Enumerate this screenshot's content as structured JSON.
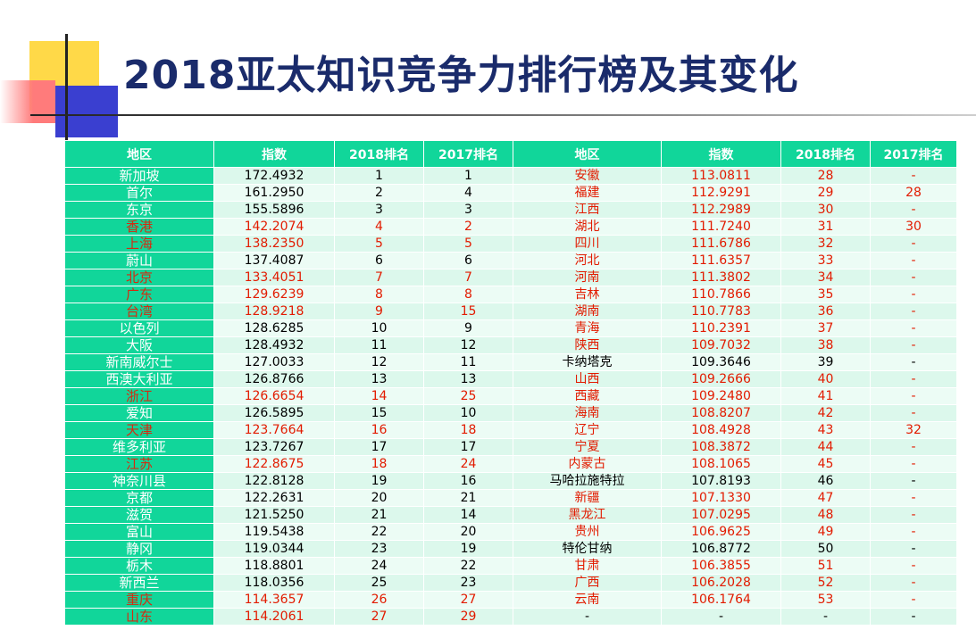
{
  "title": "2018亚太知识竞争力排行榜及其变化",
  "colors": {
    "title": "#1a2b6b",
    "header_bg": "#11d69a",
    "highlight_text": "#e21b00"
  },
  "table": {
    "headers": [
      "地区",
      "指数",
      "2018排名",
      "2017排名",
      "地区",
      "指数",
      "2018排名",
      "2017排名"
    ],
    "rows": [
      {
        "left": {
          "region": "新加坡",
          "index": "172.4932",
          "rank2018": "1",
          "rank2017": "1",
          "highlight": false
        },
        "right": {
          "region": "安徽",
          "index": "113.0811",
          "rank2018": "28",
          "rank2017": "-",
          "highlight": true
        }
      },
      {
        "left": {
          "region": "首尔",
          "index": "161.2950",
          "rank2018": "2",
          "rank2017": "4",
          "highlight": false
        },
        "right": {
          "region": "福建",
          "index": "112.9291",
          "rank2018": "29",
          "rank2017": "28",
          "highlight": true
        }
      },
      {
        "left": {
          "region": "东京",
          "index": "155.5896",
          "rank2018": "3",
          "rank2017": "3",
          "highlight": false
        },
        "right": {
          "region": "江西",
          "index": "112.2989",
          "rank2018": "30",
          "rank2017": "-",
          "highlight": true
        }
      },
      {
        "left": {
          "region": "香港",
          "index": "142.2074",
          "rank2018": "4",
          "rank2017": "2",
          "highlight": true
        },
        "right": {
          "region": "湖北",
          "index": "111.7240",
          "rank2018": "31",
          "rank2017": "30",
          "highlight": true
        }
      },
      {
        "left": {
          "region": "上海",
          "index": "138.2350",
          "rank2018": "5",
          "rank2017": "5",
          "highlight": true
        },
        "right": {
          "region": "四川",
          "index": "111.6786",
          "rank2018": "32",
          "rank2017": "-",
          "highlight": true
        }
      },
      {
        "left": {
          "region": "蔚山",
          "index": "137.4087",
          "rank2018": "6",
          "rank2017": "6",
          "highlight": false
        },
        "right": {
          "region": "河北",
          "index": "111.6357",
          "rank2018": "33",
          "rank2017": "-",
          "highlight": true
        }
      },
      {
        "left": {
          "region": "北京",
          "index": "133.4051",
          "rank2018": "7",
          "rank2017": "7",
          "highlight": true
        },
        "right": {
          "region": "河南",
          "index": "111.3802",
          "rank2018": "34",
          "rank2017": "-",
          "highlight": true
        }
      },
      {
        "left": {
          "region": "广东",
          "index": "129.6239",
          "rank2018": "8",
          "rank2017": "8",
          "highlight": true
        },
        "right": {
          "region": "吉林",
          "index": "110.7866",
          "rank2018": "35",
          "rank2017": "-",
          "highlight": true
        }
      },
      {
        "left": {
          "region": "台湾",
          "index": "128.9218",
          "rank2018": "9",
          "rank2017": "15",
          "highlight": true
        },
        "right": {
          "region": "湖南",
          "index": "110.7783",
          "rank2018": "36",
          "rank2017": "-",
          "highlight": true
        }
      },
      {
        "left": {
          "region": "以色列",
          "index": "128.6285",
          "rank2018": "10",
          "rank2017": "9",
          "highlight": false
        },
        "right": {
          "region": "青海",
          "index": "110.2391",
          "rank2018": "37",
          "rank2017": "-",
          "highlight": true
        }
      },
      {
        "left": {
          "region": "大阪",
          "index": "128.4932",
          "rank2018": "11",
          "rank2017": "12",
          "highlight": false
        },
        "right": {
          "region": "陕西",
          "index": "109.7032",
          "rank2018": "38",
          "rank2017": "-",
          "highlight": true
        }
      },
      {
        "left": {
          "region": "新南威尔士",
          "index": "127.0033",
          "rank2018": "12",
          "rank2017": "11",
          "highlight": false
        },
        "right": {
          "region": "卡纳塔克",
          "index": "109.3646",
          "rank2018": "39",
          "rank2017": "-",
          "highlight": false
        }
      },
      {
        "left": {
          "region": "西澳大利亚",
          "index": "126.8766",
          "rank2018": "13",
          "rank2017": "13",
          "highlight": false
        },
        "right": {
          "region": "山西",
          "index": "109.2666",
          "rank2018": "40",
          "rank2017": "-",
          "highlight": true
        }
      },
      {
        "left": {
          "region": "浙江",
          "index": "126.6654",
          "rank2018": "14",
          "rank2017": "25",
          "highlight": true
        },
        "right": {
          "region": "西藏",
          "index": "109.2480",
          "rank2018": "41",
          "rank2017": "-",
          "highlight": true
        }
      },
      {
        "left": {
          "region": "爱知",
          "index": "126.5895",
          "rank2018": "15",
          "rank2017": "10",
          "highlight": false
        },
        "right": {
          "region": "海南",
          "index": "108.8207",
          "rank2018": "42",
          "rank2017": "-",
          "highlight": true
        }
      },
      {
        "left": {
          "region": "天津",
          "index": "123.7664",
          "rank2018": "16",
          "rank2017": "18",
          "highlight": true
        },
        "right": {
          "region": "辽宁",
          "index": "108.4928",
          "rank2018": "43",
          "rank2017": "32",
          "highlight": true
        }
      },
      {
        "left": {
          "region": "维多利亚",
          "index": "123.7267",
          "rank2018": "17",
          "rank2017": "17",
          "highlight": false
        },
        "right": {
          "region": "宁夏",
          "index": "108.3872",
          "rank2018": "44",
          "rank2017": "-",
          "highlight": true
        }
      },
      {
        "left": {
          "region": "江苏",
          "index": "122.8675",
          "rank2018": "18",
          "rank2017": "24",
          "highlight": true
        },
        "right": {
          "region": "内蒙古",
          "index": "108.1065",
          "rank2018": "45",
          "rank2017": "-",
          "highlight": true
        }
      },
      {
        "left": {
          "region": "神奈川县",
          "index": "122.8128",
          "rank2018": "19",
          "rank2017": "16",
          "highlight": false
        },
        "right": {
          "region": "马哈拉施特拉",
          "index": "107.8193",
          "rank2018": "46",
          "rank2017": "-",
          "highlight": false
        }
      },
      {
        "left": {
          "region": "京都",
          "index": "122.2631",
          "rank2018": "20",
          "rank2017": "21",
          "highlight": false
        },
        "right": {
          "region": "新疆",
          "index": "107.1330",
          "rank2018": "47",
          "rank2017": "-",
          "highlight": true
        }
      },
      {
        "left": {
          "region": "滋贺",
          "index": "121.5250",
          "rank2018": "21",
          "rank2017": "14",
          "highlight": false
        },
        "right": {
          "region": "黑龙江",
          "index": "107.0295",
          "rank2018": "48",
          "rank2017": "-",
          "highlight": true
        }
      },
      {
        "left": {
          "region": "富山",
          "index": "119.5438",
          "rank2018": "22",
          "rank2017": "20",
          "highlight": false
        },
        "right": {
          "region": "贵州",
          "index": "106.9625",
          "rank2018": "49",
          "rank2017": "-",
          "highlight": true
        }
      },
      {
        "left": {
          "region": "静冈",
          "index": "119.0344",
          "rank2018": "23",
          "rank2017": "19",
          "highlight": false
        },
        "right": {
          "region": "特伦甘纳",
          "index": "106.8772",
          "rank2018": "50",
          "rank2017": "-",
          "highlight": false
        }
      },
      {
        "left": {
          "region": "栃木",
          "index": "118.8801",
          "rank2018": "24",
          "rank2017": "22",
          "highlight": false
        },
        "right": {
          "region": "甘肃",
          "index": "106.3855",
          "rank2018": "51",
          "rank2017": "-",
          "highlight": true
        }
      },
      {
        "left": {
          "region": "新西兰",
          "index": "118.0356",
          "rank2018": "25",
          "rank2017": "23",
          "highlight": false
        },
        "right": {
          "region": "广西",
          "index": "106.2028",
          "rank2018": "52",
          "rank2017": "-",
          "highlight": true
        }
      },
      {
        "left": {
          "region": "重庆",
          "index": "114.3657",
          "rank2018": "26",
          "rank2017": "27",
          "highlight": true
        },
        "right": {
          "region": "云南",
          "index": "106.1764",
          "rank2018": "53",
          "rank2017": "-",
          "highlight": true
        }
      },
      {
        "left": {
          "region": "山东",
          "index": "114.2061",
          "rank2018": "27",
          "rank2017": "29",
          "highlight": true
        },
        "right": {
          "region": "-",
          "index": "-",
          "rank2018": "-",
          "rank2017": "-",
          "highlight": false
        }
      }
    ]
  }
}
